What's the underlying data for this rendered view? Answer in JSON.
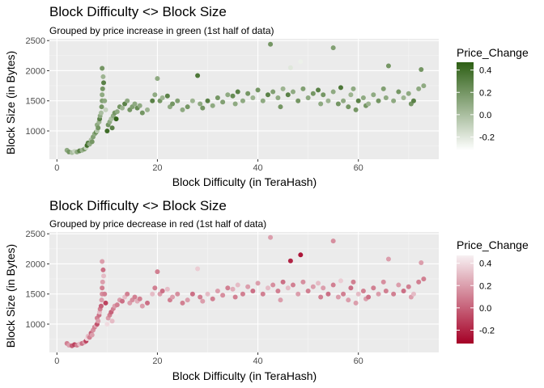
{
  "panels": [
    {
      "title": "Block Difficulty <> Block Size",
      "subtitle": "Grouped by price increase in green (1st half of data)",
      "xlabel": "Block Difficulty (in TeraHash)",
      "ylabel": "Block Size (in Bytes)",
      "legend_title": "Price_Change",
      "legend_ticks": [
        "0.4",
        "0.2",
        "0.0",
        "-0.2"
      ],
      "x_ticks": [
        "0",
        "20",
        "40",
        "60"
      ],
      "y_ticks": [
        "2500",
        "2000",
        "1500",
        "1000"
      ]
    },
    {
      "title": "Block Difficulty <> Block Size",
      "subtitle": "Grouped by price decrease in red (1st half of data)",
      "xlabel": "Block Difficulty (in TeraHash)",
      "ylabel": "Block Size (in Bytes)",
      "legend_title": "Price_Change",
      "legend_ticks": [
        "0.4",
        "0.2",
        "0.0",
        "-0.2"
      ],
      "x_ticks": [
        "0",
        "20",
        "40",
        "60"
      ],
      "y_ticks": [
        "2500",
        "2000",
        "1500",
        "1000"
      ]
    }
  ],
  "chart_data": [
    {
      "type": "scatter",
      "title": "Block Difficulty <> Block Size",
      "subtitle": "Grouped by price increase in green (1st half of data)",
      "xlabel": "Block Difficulty (in TeraHash)",
      "ylabel": "Block Size (in Bytes)",
      "xlim": [
        -1.5,
        76
      ],
      "ylim": [
        530,
        2530
      ],
      "x_ticks": [
        0,
        20,
        40,
        60
      ],
      "y_ticks": [
        1000,
        1500,
        2000,
        2500
      ],
      "grid": true,
      "legend": {
        "title": "Price_Change",
        "position": "right",
        "range": [
          -0.32,
          0.47
        ],
        "ticks": [
          0.4,
          0.2,
          0.0,
          -0.2
        ]
      },
      "color_scale": {
        "low": "#ffffff",
        "high": "#2d5f14"
      },
      "points": [
        [
          2,
          680,
          0.1
        ],
        [
          2.4,
          650,
          0.2
        ],
        [
          3,
          640,
          0.0
        ],
        [
          3.5,
          660,
          -0.1
        ],
        [
          4,
          650,
          0.1
        ],
        [
          4.5,
          670,
          0.3
        ],
        [
          5,
          680,
          0.05
        ],
        [
          5.5,
          700,
          0.2
        ],
        [
          5.8,
          720,
          -0.1
        ],
        [
          6,
          760,
          0.4
        ],
        [
          6.2,
          800,
          0.3
        ],
        [
          6.5,
          780,
          0.1
        ],
        [
          6.8,
          850,
          0.0
        ],
        [
          7,
          820,
          0.2
        ],
        [
          7.2,
          900,
          0.15
        ],
        [
          7.5,
          950,
          0.1
        ],
        [
          7.8,
          980,
          0.25
        ],
        [
          8,
          1000,
          -0.05
        ],
        [
          8,
          1100,
          0.1
        ],
        [
          8.2,
          1050,
          0.2
        ],
        [
          8.4,
          1150,
          0.05
        ],
        [
          8.5,
          1200,
          0.3
        ],
        [
          8.6,
          1250,
          0.1
        ],
        [
          8.8,
          1300,
          0.0
        ],
        [
          8.9,
          1400,
          0.2
        ],
        [
          9,
          1500,
          0.15
        ],
        [
          9,
          1600,
          0.1
        ],
        [
          9.1,
          1700,
          0.2
        ],
        [
          9.2,
          1900,
          0.05
        ],
        [
          9.3,
          1800,
          0.3
        ],
        [
          9.5,
          1500,
          0.1
        ],
        [
          9,
          2040,
          0.2
        ],
        [
          9.7,
          1350,
          -0.1
        ],
        [
          10,
          1000,
          0.4
        ],
        [
          10.2,
          1100,
          0.2
        ],
        [
          10.5,
          1150,
          0.1
        ],
        [
          10.8,
          1200,
          0.0
        ],
        [
          11,
          1050,
          0.3
        ],
        [
          11.2,
          1250,
          0.1
        ],
        [
          11.5,
          1300,
          0.2
        ],
        [
          11.8,
          1200,
          0.45
        ],
        [
          12,
          1320,
          0.1
        ],
        [
          12.5,
          1400,
          0.2
        ],
        [
          13,
          1380,
          0.05
        ],
        [
          13.5,
          1450,
          0.3
        ],
        [
          14,
          1500,
          0.1
        ],
        [
          14.5,
          1350,
          0.2
        ],
        [
          15,
          1400,
          0.15
        ],
        [
          15.5,
          1450,
          0.1
        ],
        [
          16,
          1380,
          0.25
        ],
        [
          16.5,
          1420,
          0.1
        ],
        [
          17,
          1300,
          0.2
        ],
        [
          18,
          1350,
          0.05
        ],
        [
          19,
          1500,
          0.3
        ],
        [
          19.5,
          1600,
          0.1
        ],
        [
          20,
          1870,
          0.1
        ],
        [
          20.5,
          1500,
          0.2
        ],
        [
          21,
          1550,
          0.05
        ],
        [
          22,
          1580,
          0.3
        ],
        [
          22.5,
          1400,
          0.1
        ],
        [
          23,
          1450,
          0.2
        ],
        [
          24,
          1500,
          0.15
        ],
        [
          25,
          1350,
          0.1
        ],
        [
          26,
          1400,
          0.2
        ],
        [
          27,
          1500,
          0.05
        ],
        [
          28,
          1920,
          0.35
        ],
        [
          28.5,
          1450,
          0.1
        ],
        [
          29,
          1380,
          0.2
        ],
        [
          30,
          1500,
          0.3
        ],
        [
          31,
          1420,
          0.1
        ],
        [
          32,
          1550,
          0.2
        ],
        [
          33,
          1480,
          0.15
        ],
        [
          34,
          1600,
          0.1
        ],
        [
          35,
          1580,
          0.25
        ],
        [
          35.5,
          1450,
          0.1
        ],
        [
          36,
          1650,
          0.3
        ],
        [
          37,
          1500,
          0.1
        ],
        [
          38,
          1620,
          0.2
        ],
        [
          39,
          1550,
          0.05
        ],
        [
          40,
          1680,
          0.2
        ],
        [
          41,
          1500,
          0.1
        ],
        [
          42,
          1600,
          0.3
        ],
        [
          42.5,
          2440,
          0.2
        ],
        [
          43,
          1650,
          0.15
        ],
        [
          44,
          1550,
          0.1
        ],
        [
          44.5,
          1400,
          0.2
        ],
        [
          45,
          1700,
          0.05
        ],
        [
          46,
          1600,
          0.3
        ],
        [
          46.5,
          2050,
          -0.2
        ],
        [
          47,
          1650,
          0.1
        ],
        [
          48,
          1500,
          0.2
        ],
        [
          48.5,
          2150,
          -0.25
        ],
        [
          49,
          1700,
          0.15
        ],
        [
          50,
          1550,
          0.1
        ],
        [
          51,
          1620,
          0.2
        ],
        [
          52,
          1680,
          0.3
        ],
        [
          52.5,
          1450,
          0.1
        ],
        [
          53,
          1600,
          0.2
        ],
        [
          54,
          1500,
          0.05
        ],
        [
          55,
          1650,
          0.1
        ],
        [
          55,
          2380,
          0.15
        ],
        [
          56,
          1450,
          0.2
        ],
        [
          56.5,
          1720,
          0.35
        ],
        [
          57,
          1500,
          0.1
        ],
        [
          58,
          1400,
          0.2
        ],
        [
          58.5,
          1600,
          0.05
        ],
        [
          59,
          1700,
          0.1
        ],
        [
          59.5,
          1350,
          0.2
        ],
        [
          60,
          1500,
          0.3
        ],
        [
          61,
          1550,
          0.1
        ],
        [
          61.5,
          1420,
          0.2
        ],
        [
          62,
          1450,
          0.05
        ],
        [
          63,
          1600,
          0.1
        ],
        [
          64,
          1500,
          0.2
        ],
        [
          65,
          1700,
          0.15
        ],
        [
          65.5,
          1550,
          0.1
        ],
        [
          66,
          2080,
          0.2
        ],
        [
          67,
          1500,
          0.1
        ],
        [
          68,
          1650,
          0.2
        ],
        [
          69,
          1550,
          0.05
        ],
        [
          70,
          1620,
          0.1
        ],
        [
          70.5,
          1450,
          0.2
        ],
        [
          71,
          1500,
          0.3
        ],
        [
          72,
          1700,
          0.1
        ],
        [
          72.5,
          2020,
          0.2
        ],
        [
          73,
          1750,
          0.1
        ]
      ]
    },
    {
      "type": "scatter",
      "title": "Block Difficulty <> Block Size",
      "subtitle": "Grouped by price decrease in red (1st half of data)",
      "xlabel": "Block Difficulty (in TeraHash)",
      "ylabel": "Block Size (in Bytes)",
      "xlim": [
        -1.5,
        76
      ],
      "ylim": [
        530,
        2530
      ],
      "x_ticks": [
        0,
        20,
        40,
        60
      ],
      "y_ticks": [
        1000,
        1500,
        2000,
        2500
      ],
      "grid": true,
      "legend": {
        "title": "Price_Change",
        "position": "right",
        "range": [
          -0.32,
          0.47
        ],
        "ticks": [
          0.4,
          0.2,
          0.0,
          -0.2
        ]
      },
      "color_scale": {
        "low": "#a50026",
        "high": "#f7f0f2"
      },
      "points": [
        [
          2,
          680,
          0.1
        ],
        [
          2.4,
          650,
          0.2
        ],
        [
          3,
          640,
          0.0
        ],
        [
          3.5,
          660,
          -0.1
        ],
        [
          4,
          650,
          0.1
        ],
        [
          4.5,
          670,
          0.3
        ],
        [
          5,
          680,
          0.05
        ],
        [
          5.5,
          700,
          0.2
        ],
        [
          5.8,
          720,
          -0.1
        ],
        [
          6,
          760,
          0.4
        ],
        [
          6.2,
          800,
          0.3
        ],
        [
          6.5,
          780,
          0.1
        ],
        [
          6.8,
          850,
          0.0
        ],
        [
          7,
          820,
          0.2
        ],
        [
          7.2,
          900,
          0.15
        ],
        [
          7.5,
          950,
          0.1
        ],
        [
          7.8,
          980,
          0.25
        ],
        [
          8,
          1000,
          -0.05
        ],
        [
          8,
          1100,
          0.1
        ],
        [
          8.2,
          1050,
          0.2
        ],
        [
          8.4,
          1150,
          0.05
        ],
        [
          8.5,
          1200,
          0.3
        ],
        [
          8.6,
          1250,
          0.1
        ],
        [
          8.8,
          1300,
          0.0
        ],
        [
          8.9,
          1400,
          0.2
        ],
        [
          9,
          1500,
          0.15
        ],
        [
          9,
          1600,
          0.1
        ],
        [
          9.1,
          1700,
          0.2
        ],
        [
          9.2,
          1900,
          0.05
        ],
        [
          9.3,
          1800,
          0.3
        ],
        [
          9.5,
          1500,
          0.1
        ],
        [
          9,
          2040,
          0.2
        ],
        [
          9.7,
          1350,
          -0.1
        ],
        [
          10,
          1000,
          0.4
        ],
        [
          10.2,
          1100,
          0.2
        ],
        [
          10.5,
          1150,
          0.1
        ],
        [
          10.8,
          1200,
          0.0
        ],
        [
          11,
          1050,
          0.3
        ],
        [
          11.2,
          1250,
          0.1
        ],
        [
          11.5,
          1300,
          0.2
        ],
        [
          11.8,
          1200,
          0.45
        ],
        [
          12,
          1320,
          0.1
        ],
        [
          12.5,
          1400,
          0.2
        ],
        [
          13,
          1380,
          0.05
        ],
        [
          13.5,
          1450,
          0.3
        ],
        [
          14,
          1500,
          0.1
        ],
        [
          14.5,
          1350,
          0.2
        ],
        [
          15,
          1400,
          0.15
        ],
        [
          15.5,
          1450,
          0.1
        ],
        [
          16,
          1380,
          0.25
        ],
        [
          16.5,
          1420,
          0.1
        ],
        [
          17,
          1300,
          0.2
        ],
        [
          18,
          1350,
          0.05
        ],
        [
          19,
          1500,
          0.3
        ],
        [
          19.5,
          1600,
          0.1
        ],
        [
          20,
          1870,
          0.1
        ],
        [
          20.5,
          1500,
          0.2
        ],
        [
          21,
          1550,
          0.05
        ],
        [
          22,
          1580,
          0.3
        ],
        [
          22.5,
          1400,
          0.1
        ],
        [
          23,
          1450,
          0.2
        ],
        [
          24,
          1500,
          0.15
        ],
        [
          25,
          1350,
          0.1
        ],
        [
          26,
          1400,
          0.2
        ],
        [
          27,
          1500,
          0.05
        ],
        [
          28,
          1920,
          0.35
        ],
        [
          28.5,
          1450,
          0.1
        ],
        [
          29,
          1380,
          0.2
        ],
        [
          30,
          1500,
          0.3
        ],
        [
          31,
          1420,
          0.1
        ],
        [
          32,
          1550,
          0.2
        ],
        [
          33,
          1480,
          0.15
        ],
        [
          34,
          1600,
          0.1
        ],
        [
          35,
          1580,
          0.25
        ],
        [
          35.5,
          1450,
          0.1
        ],
        [
          36,
          1650,
          0.3
        ],
        [
          37,
          1500,
          0.1
        ],
        [
          38,
          1620,
          0.2
        ],
        [
          39,
          1550,
          0.05
        ],
        [
          40,
          1680,
          0.2
        ],
        [
          41,
          1500,
          0.1
        ],
        [
          42,
          1600,
          0.3
        ],
        [
          42.5,
          2440,
          0.2
        ],
        [
          43,
          1650,
          0.15
        ],
        [
          44,
          1550,
          0.1
        ],
        [
          44.5,
          1400,
          0.2
        ],
        [
          45,
          1700,
          0.05
        ],
        [
          46,
          1600,
          0.3
        ],
        [
          46.5,
          2050,
          -0.2
        ],
        [
          47,
          1650,
          0.1
        ],
        [
          48,
          1500,
          0.2
        ],
        [
          48.5,
          2150,
          -0.25
        ],
        [
          49,
          1700,
          0.15
        ],
        [
          50,
          1550,
          0.1
        ],
        [
          51,
          1620,
          0.2
        ],
        [
          52,
          1680,
          0.3
        ],
        [
          52.5,
          1450,
          0.1
        ],
        [
          53,
          1600,
          0.2
        ],
        [
          54,
          1500,
          0.05
        ],
        [
          55,
          1650,
          0.1
        ],
        [
          55,
          2380,
          0.15
        ],
        [
          56,
          1450,
          0.2
        ],
        [
          56.5,
          1720,
          0.35
        ],
        [
          57,
          1500,
          0.1
        ],
        [
          58,
          1400,
          0.2
        ],
        [
          58.5,
          1600,
          0.05
        ],
        [
          59,
          1700,
          0.1
        ],
        [
          59.5,
          1350,
          0.2
        ],
        [
          60,
          1500,
          0.3
        ],
        [
          61,
          1550,
          0.1
        ],
        [
          61.5,
          1420,
          0.2
        ],
        [
          62,
          1450,
          0.05
        ],
        [
          63,
          1600,
          0.1
        ],
        [
          64,
          1500,
          0.2
        ],
        [
          65,
          1700,
          0.15
        ],
        [
          65.5,
          1550,
          0.1
        ],
        [
          66,
          2080,
          0.2
        ],
        [
          67,
          1500,
          0.1
        ],
        [
          68,
          1650,
          0.2
        ],
        [
          69,
          1550,
          0.05
        ],
        [
          70,
          1620,
          0.1
        ],
        [
          70.5,
          1450,
          0.2
        ],
        [
          71,
          1500,
          0.3
        ],
        [
          72,
          1700,
          0.1
        ],
        [
          72.5,
          2020,
          0.2
        ],
        [
          73,
          1750,
          0.1
        ]
      ]
    }
  ]
}
